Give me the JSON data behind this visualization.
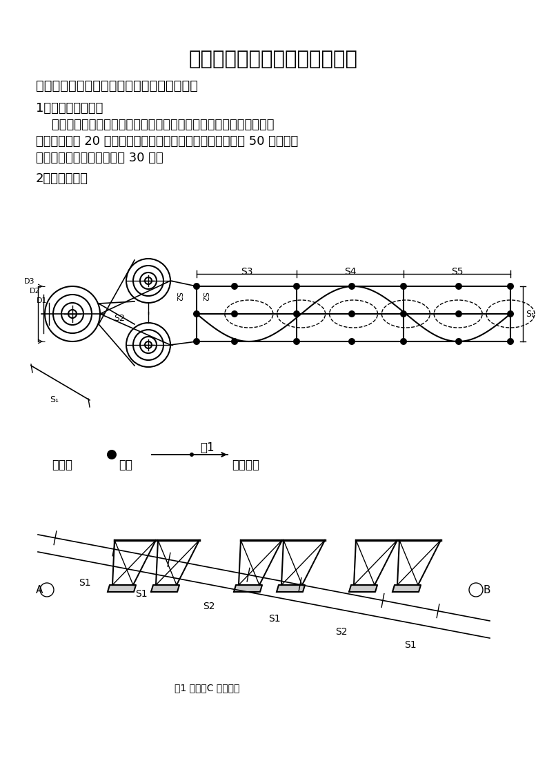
{
  "title": "桥门式起重机司机实操扣分细则",
  "section1": "一、实操考试成绩评定组成及考试路线、方法",
  "subsection1": "1、成绩评定组成：",
  "para1_line1": "    桥门式起重机司机实操考试成绩评定由三部分组成：一、现场作业能",
  "para1_line2": "力识别，满分 20 分；二、吊圆桶曲线运行、定点停放，满分 50 分；三、",
  "para1_line3": "吊圆桶通过高低框架，满分 30 分。",
  "subsection2": "2、考试路线：",
  "fig1_label": "图1",
  "legend_prefix": "图中：",
  "legend_biaoqian": "标杆",
  "legend_suffix": "运行路线",
  "fig1_caption": "图1 图中：C 起、终点",
  "bg_color": "#ffffff"
}
